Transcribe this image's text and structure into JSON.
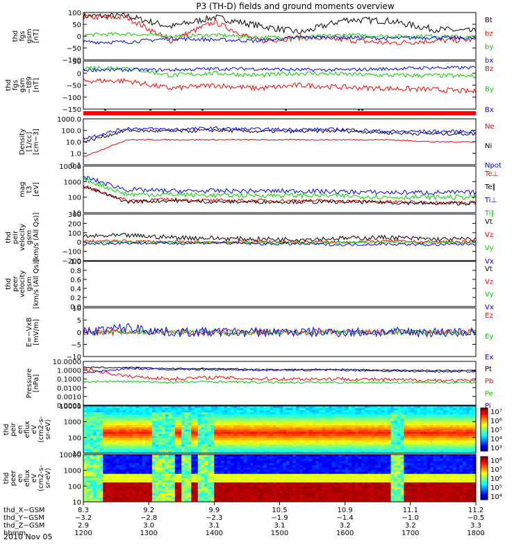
{
  "title": "P3 (TH-D) fields and ground moments overview",
  "date_label": "2010 Nov 05",
  "colors": {
    "black": "#000000",
    "red": "#ff0000",
    "green": "#00cc00",
    "blue": "#0000ff"
  },
  "chart_data": [
    {
      "type": "line",
      "panel": "fgs",
      "ylabel_lines": [
        "thd",
        "fgs",
        "gsm",
        "[nT]"
      ],
      "yticks": [
        "100",
        "50",
        "0",
        "−50",
        "−100"
      ],
      "ylim": [
        -100,
        100
      ],
      "legend": [
        {
          "label": "Bt",
          "color": "black"
        },
        {
          "label": "bz",
          "color": "red"
        },
        {
          "label": "by",
          "color": "green"
        },
        {
          "label": "bx",
          "color": "blue"
        }
      ],
      "series": [
        {
          "color": "black",
          "base": [
            85,
            85,
            40,
            80,
            45,
            15,
            70,
            65,
            30,
            20
          ],
          "noise": 14
        },
        {
          "color": "red",
          "base": [
            80,
            80,
            -20,
            60,
            -20,
            -5,
            -15,
            -30,
            -20,
            -15
          ],
          "noise": 12
        },
        {
          "color": "green",
          "base": [
            5,
            10,
            0,
            5,
            -5,
            -5,
            5,
            0,
            0,
            -5
          ],
          "noise": 8
        },
        {
          "color": "blue",
          "base": [
            -25,
            -25,
            -10,
            -15,
            -20,
            -5,
            -5,
            -10,
            -5,
            -10
          ],
          "noise": 8
        }
      ]
    },
    {
      "type": "line",
      "panel": "fgs_t89",
      "ylabel_lines": [
        "thd",
        "fgs",
        "gsm",
        "−t89",
        "[nT]"
      ],
      "yticks": [
        "50",
        "0",
        "−50",
        "−100",
        "−150"
      ],
      "ylim": [
        -170,
        50
      ],
      "legend": [
        {
          "label": "Bz",
          "color": "red"
        },
        {
          "label": "By",
          "color": "green"
        },
        {
          "label": "Bx",
          "color": "blue"
        }
      ],
      "series": [
        {
          "color": "red",
          "base": [
            -40,
            -40,
            -75,
            -60,
            -75,
            -60,
            -70,
            -75,
            -80,
            -90
          ],
          "noise": 12
        },
        {
          "color": "green",
          "base": [
            20,
            20,
            -15,
            -5,
            -15,
            -5,
            -10,
            -15,
            -15,
            -20
          ],
          "noise": 10
        },
        {
          "color": "blue",
          "base": [
            10,
            10,
            10,
            15,
            15,
            10,
            10,
            15,
            20,
            20
          ],
          "noise": 8
        }
      ]
    },
    {
      "type": "line",
      "panel": "density",
      "log": true,
      "ylabel_lines": [
        "Density",
        "[1/cc]",
        "[cm−3]"
      ],
      "yticks": [
        "1000.0",
        "100.0",
        "10.0",
        "1.0",
        "0.1"
      ],
      "ylim": [
        0.1,
        1000
      ],
      "legend": [
        {
          "label": "Ne",
          "color": "red"
        },
        {
          "label": "Ni",
          "color": "black"
        },
        {
          "label": "Npot",
          "color": "blue"
        }
      ],
      "series": [
        {
          "color": "red",
          "base": [
            0.5,
            15,
            15,
            15,
            15,
            15,
            15,
            15,
            10,
            10
          ],
          "noise": 0.05
        },
        {
          "color": "black",
          "base": [
            10,
            100,
            80,
            100,
            80,
            80,
            90,
            60,
            50,
            50
          ],
          "noise": 0.15
        },
        {
          "color": "blue",
          "base": [
            20,
            150,
            120,
            150,
            120,
            120,
            120,
            80,
            80,
            80
          ],
          "noise": 0.15
        }
      ]
    },
    {
      "type": "line",
      "panel": "temperature",
      "log": true,
      "ylabel_lines": [
        "mag",
        "t3",
        "[eV]"
      ],
      "yticks": [
        "10000",
        "1000",
        "100",
        "10"
      ],
      "ylim": [
        10,
        10000
      ],
      "legend": [
        {
          "label": "Te⊥",
          "color": "red"
        },
        {
          "label": "Te∥",
          "color": "black"
        },
        {
          "label": "Ti⊥",
          "color": "blue"
        },
        {
          "label": "Ti∥",
          "color": "green"
        }
      ],
      "series": [
        {
          "color": "red",
          "base": [
            500,
            60,
            70,
            60,
            60,
            60,
            55,
            50,
            45,
            45
          ],
          "noise": 0.12
        },
        {
          "color": "black",
          "base": [
            500,
            50,
            60,
            50,
            50,
            50,
            50,
            45,
            40,
            40
          ],
          "noise": 0.12
        },
        {
          "color": "blue",
          "base": [
            2000,
            300,
            250,
            250,
            250,
            250,
            220,
            200,
            200,
            200
          ],
          "noise": 0.15
        },
        {
          "color": "green",
          "base": [
            1500,
            150,
            150,
            130,
            130,
            130,
            120,
            100,
            100,
            100
          ],
          "noise": 0.15
        }
      ]
    },
    {
      "type": "line",
      "panel": "velocity",
      "ylabel_lines": [
        "thd",
        "peir",
        "velocity",
        "gsm",
        "[km/s (All Qs)]"
      ],
      "yticks": [
        "300",
        "200",
        "100",
        "0",
        "−100",
        "−200"
      ],
      "ylim": [
        -200,
        300
      ],
      "legend": [
        {
          "label": "Vt",
          "color": "black"
        },
        {
          "label": "Vz",
          "color": "red"
        },
        {
          "label": "Vy",
          "color": "green"
        },
        {
          "label": "Vx",
          "color": "blue"
        }
      ],
      "series": [
        {
          "color": "black",
          "base": [
            60,
            70,
            50,
            40,
            30,
            30,
            40,
            50,
            30,
            30
          ],
          "noise": 25
        },
        {
          "color": "red",
          "base": [
            10,
            10,
            0,
            0,
            5,
            0,
            0,
            10,
            0,
            5
          ],
          "noise": 15
        },
        {
          "color": "green",
          "base": [
            0,
            0,
            -5,
            -5,
            -10,
            -10,
            -5,
            0,
            -10,
            -5
          ],
          "noise": 12
        },
        {
          "color": "blue",
          "base": [
            -20,
            -10,
            -15,
            -10,
            -20,
            -20,
            -30,
            -20,
            -30,
            -20
          ],
          "noise": 15
        }
      ]
    },
    {
      "type": "line",
      "panel": "peer_velocity",
      "ylabel_lines": [
        "thd",
        "peer",
        "velocity",
        "gsm",
        "[km/s (All Qs)]"
      ],
      "yticks": [
        "1.0",
        "0.8",
        "0.6",
        "0.4",
        "0.2",
        "0.0"
      ],
      "ylim": [
        0,
        1
      ],
      "legend": [
        {
          "label": "Vt",
          "color": "black"
        },
        {
          "label": "Vz",
          "color": "red"
        },
        {
          "label": "Vy",
          "color": "green"
        },
        {
          "label": "Vx",
          "color": "blue"
        }
      ],
      "series": []
    },
    {
      "type": "line",
      "panel": "efield",
      "ylabel_lines": [
        "E=−VxB",
        "[mV/m]"
      ],
      "yticks": [
        "10",
        "5",
        "0",
        "−5",
        "−10"
      ],
      "ylim": [
        -10,
        10
      ],
      "legend": [
        {
          "label": "Ez",
          "color": "red"
        },
        {
          "label": "Ey",
          "color": "green"
        },
        {
          "label": "Ex",
          "color": "blue"
        }
      ],
      "series": [
        {
          "color": "red",
          "base": [
            0,
            0,
            0,
            0,
            0,
            0,
            0,
            0,
            0,
            0
          ],
          "noise": 1.2
        },
        {
          "color": "green",
          "base": [
            0,
            0,
            0,
            0,
            0,
            0,
            0,
            0,
            0,
            0
          ],
          "noise": 1.0
        },
        {
          "color": "blue",
          "base": [
            0,
            2,
            0,
            0,
            0,
            0,
            0,
            0,
            0,
            0
          ],
          "noise": 2.0
        }
      ]
    },
    {
      "type": "line",
      "panel": "pressure",
      "log": true,
      "ylabel_lines": [
        "Pressure",
        "[nPa]"
      ],
      "yticks": [
        "10.0000",
        "1.0000",
        "0.1000",
        "0.0100",
        "0.0010",
        "0.0001"
      ],
      "ylim": [
        0.0001,
        10
      ],
      "legend": [
        {
          "label": "Pt",
          "color": "black"
        },
        {
          "label": "Pb",
          "color": "red"
        },
        {
          "label": "Pe",
          "color": "green"
        },
        {
          "label": "Pi",
          "color": "blue"
        }
      ],
      "series": [
        {
          "color": "black",
          "base": [
            2,
            2,
            1.5,
            1.5,
            1.2,
            1.2,
            1.2,
            1.0,
            0.9,
            0.9
          ],
          "noise": 0.08
        },
        {
          "color": "red",
          "base": [
            1.5,
            0.2,
            0.1,
            0.15,
            0.1,
            0.1,
            0.1,
            0.08,
            0.07,
            0.06
          ],
          "noise": 0.2
        },
        {
          "color": "green",
          "base": [
            0.05,
            0.05,
            0.04,
            0.05,
            0.04,
            0.04,
            0.04,
            0.04,
            0.04,
            0.04
          ],
          "noise": 0.12
        },
        {
          "color": "blue",
          "base": [
            0.5,
            1.5,
            1.2,
            1.2,
            1.0,
            1.0,
            1.0,
            0.8,
            0.7,
            0.7
          ],
          "noise": 0.1
        }
      ]
    },
    {
      "type": "heatmap",
      "panel": "peir_spec",
      "ylabel_lines": [
        "thd",
        "peir",
        "en",
        "eflux",
        "eV",
        "(cm2-s-",
        "sr-eV)"
      ],
      "yticks": [
        "10000",
        "1000",
        "100",
        "10"
      ],
      "ylim": [
        10,
        20000
      ],
      "colorbar_ticks": [
        "10⁷",
        "10⁶",
        "10⁵",
        "10⁴",
        "10³"
      ]
    },
    {
      "type": "heatmap",
      "panel": "peer_spec",
      "ylabel_lines": [
        "thd",
        "peer",
        "en",
        "eflux",
        "eV",
        "(cm2-s-",
        "sr-eV)"
      ],
      "yticks": [
        "10000",
        "1000",
        "100",
        "10"
      ],
      "ylim": [
        10,
        20000
      ],
      "colorbar_ticks": [
        "10⁸",
        "10⁷",
        "10⁶",
        "10⁵",
        "10⁴"
      ]
    }
  ],
  "time_axis": {
    "row_labels": [
      "thd_X−GSM",
      "thd_Y−GSM",
      "thd_Z−GSM",
      "hhmm"
    ],
    "columns": [
      {
        "x": "8.3",
        "y": "−3.2",
        "z": "2.9",
        "t": "1200"
      },
      {
        "x": "9.2",
        "y": "−2.8",
        "z": "3.0",
        "t": "1300"
      },
      {
        "x": "9.9",
        "y": "−2.3",
        "z": "3.1",
        "t": "1400"
      },
      {
        "x": "10.5",
        "y": "−1.9",
        "z": "3.1",
        "t": "1500"
      },
      {
        "x": "10.9",
        "y": "−1.4",
        "z": "3.2",
        "t": "1600"
      },
      {
        "x": "11.1",
        "y": "−1.0",
        "z": "3.2",
        "t": "1700"
      },
      {
        "x": "11.2",
        "y": "−0.5",
        "z": "3.3",
        "t": "1800"
      }
    ]
  }
}
